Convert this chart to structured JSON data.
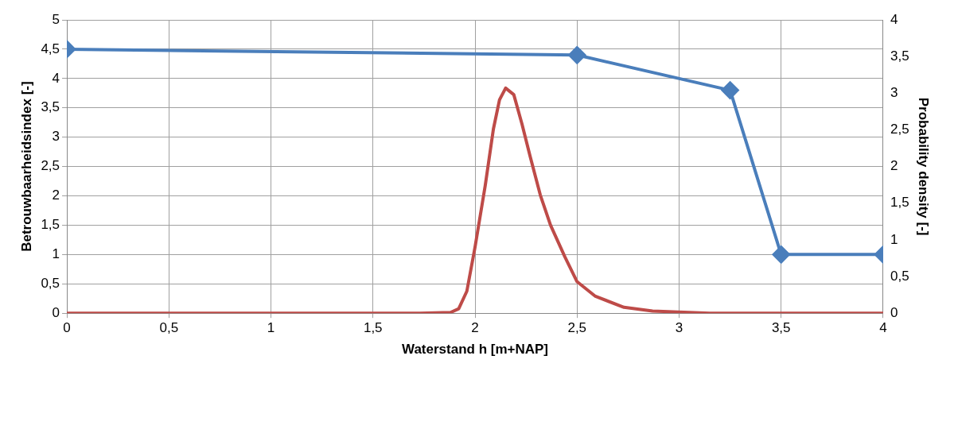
{
  "chart_data": {
    "type": "line",
    "xlabel": "Waterstand h [m+NAP]",
    "ylabel": "Betrouwbaarheidsindex [-]",
    "y2label": "Probability density [-]",
    "xlim": [
      0,
      4
    ],
    "xticks": [
      0,
      {
        "value": 0.5,
        "label": "0,5"
      },
      1,
      {
        "value": 1.5,
        "label": "1,5"
      },
      2,
      {
        "value": 2.5,
        "label": "2,5"
      },
      3,
      {
        "value": 3.5,
        "label": "3,5"
      },
      4
    ],
    "ylim": [
      0,
      5
    ],
    "yticks": [
      0,
      {
        "value": 0.5,
        "label": "0,5"
      },
      1,
      {
        "value": 1.5,
        "label": "1,5"
      },
      2,
      {
        "value": 2.5,
        "label": "2,5"
      },
      3,
      {
        "value": 3.5,
        "label": "3,5"
      },
      4,
      {
        "value": 4.5,
        "label": "4,5"
      },
      5
    ],
    "y2lim": [
      0,
      4
    ],
    "y2ticks": [
      0,
      {
        "value": 0.5,
        "label": "0,5"
      },
      1,
      {
        "value": 1.5,
        "label": "1,5"
      },
      2,
      {
        "value": 2.5,
        "label": "2,5"
      },
      3,
      {
        "value": 3.5,
        "label": "3,5"
      },
      4
    ],
    "grid": true,
    "line_style": "solid",
    "series": [
      {
        "color": "#4a7ebb",
        "marker": "diamond",
        "x": [
          0,
          2.5,
          3.25,
          3.5,
          4
        ],
        "values": [
          4.5,
          4.4,
          3.8,
          1,
          1
        ]
      },
      {
        "axis": "y2",
        "color": "#be4b48",
        "marker": "none",
        "x": [
          0,
          1.73,
          1.88,
          1.92,
          1.96,
          2.0,
          2.05,
          2.09,
          2.12,
          2.15,
          2.19,
          2.23,
          2.27,
          2.32,
          2.37,
          2.44,
          2.5,
          2.59,
          2.73,
          2.87,
          3.15,
          4
        ],
        "values": [
          0,
          0,
          0.01,
          0.06,
          0.3,
          0.9,
          1.74,
          2.51,
          2.91,
          3.07,
          2.98,
          2.58,
          2.14,
          1.61,
          1.2,
          0.77,
          0.43,
          0.23,
          0.08,
          0.03,
          0,
          0
        ]
      }
    ]
  }
}
